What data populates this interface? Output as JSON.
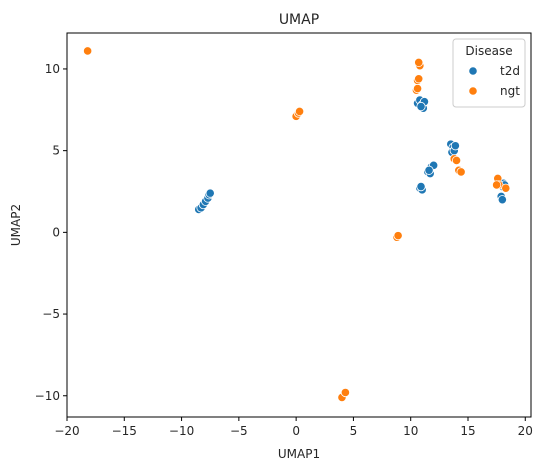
{
  "chart_data": {
    "type": "scatter",
    "title": "UMAP",
    "xlabel": "UMAP1",
    "ylabel": "UMAP2",
    "xlim": [
      -20,
      20.5
    ],
    "ylim": [
      -11.3,
      12.2
    ],
    "xticks": [
      -20,
      -15,
      -10,
      -5,
      0,
      5,
      10,
      15,
      20
    ],
    "yticks": [
      -10,
      -5,
      0,
      5,
      10
    ],
    "grid": false,
    "legend": {
      "title": "Disease",
      "placement": "top-right"
    },
    "series": [
      {
        "name": "t2d",
        "color": "#1f77b4",
        "points": [
          [
            -8.5,
            1.4
          ],
          [
            -8.3,
            1.5
          ],
          [
            -8.1,
            1.7
          ],
          [
            -7.9,
            1.9
          ],
          [
            -7.7,
            2.1
          ],
          [
            -7.6,
            2.3
          ],
          [
            -7.5,
            2.4
          ],
          [
            10.6,
            7.9
          ],
          [
            10.8,
            8.1
          ],
          [
            11.0,
            7.8
          ],
          [
            11.1,
            7.6
          ],
          [
            11.2,
            8.0
          ],
          [
            10.9,
            7.7
          ],
          [
            11.5,
            3.7
          ],
          [
            11.7,
            3.6
          ],
          [
            11.8,
            4.0
          ],
          [
            12.0,
            4.1
          ],
          [
            11.6,
            3.8
          ],
          [
            10.8,
            2.7
          ],
          [
            11.0,
            2.6
          ],
          [
            10.9,
            2.8
          ],
          [
            13.5,
            5.4
          ],
          [
            13.7,
            5.2
          ],
          [
            13.6,
            4.9
          ],
          [
            13.8,
            5.0
          ],
          [
            13.9,
            5.3
          ],
          [
            17.8,
            2.9
          ],
          [
            18.0,
            2.8
          ],
          [
            18.1,
            3.0
          ],
          [
            17.9,
            2.2
          ],
          [
            18.0,
            2.0
          ],
          [
            18.2,
            2.9
          ]
        ]
      },
      {
        "name": "ngt",
        "color": "#ff7f0e",
        "points": [
          [
            -18.2,
            11.1
          ],
          [
            0.0,
            7.1
          ],
          [
            0.2,
            7.3
          ],
          [
            0.3,
            7.4
          ],
          [
            10.5,
            8.7
          ],
          [
            10.6,
            8.8
          ],
          [
            10.6,
            9.3
          ],
          [
            10.7,
            9.4
          ],
          [
            10.7,
            10.3
          ],
          [
            10.8,
            10.2
          ],
          [
            10.7,
            10.4
          ],
          [
            8.8,
            -0.3
          ],
          [
            8.9,
            -0.2
          ],
          [
            4.0,
            -10.1
          ],
          [
            4.3,
            -9.8
          ],
          [
            13.8,
            4.5
          ],
          [
            14.0,
            4.4
          ],
          [
            14.2,
            3.8
          ],
          [
            14.4,
            3.7
          ],
          [
            17.6,
            3.3
          ],
          [
            17.7,
            2.9
          ],
          [
            18.3,
            2.7
          ],
          [
            17.5,
            2.9
          ]
        ]
      }
    ]
  }
}
